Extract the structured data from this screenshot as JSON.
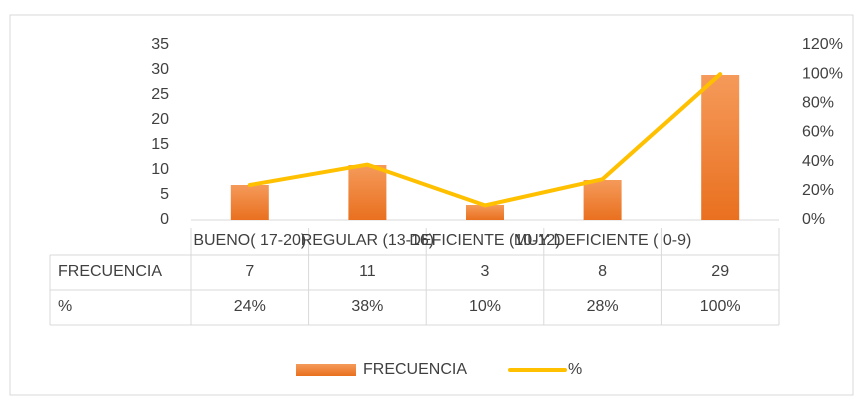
{
  "chart_data": {
    "type": "bar",
    "categories": [
      "BUENO( 17-20)",
      "REGULAR  (13-16)",
      "DEFICIENTE (10-12)",
      "MUY DEFICIENTE ( 0-9)",
      null
    ],
    "series": [
      {
        "name": "FRECUENCIA",
        "color": "#ed7d31",
        "values": [
          7,
          11,
          3,
          8,
          29
        ]
      },
      {
        "name": "%",
        "color": "#ffc000",
        "type": "line",
        "axis": "y2",
        "values": [
          24,
          38,
          10,
          28,
          100
        ],
        "value_labels": [
          "24%",
          "38%",
          "10%",
          "28%",
          "100%"
        ]
      }
    ],
    "ylim": [
      0,
      35
    ],
    "yticks": [
      0,
      5,
      10,
      15,
      20,
      25,
      30,
      35
    ],
    "y2lim": [
      0,
      120
    ],
    "y2ticks": [
      {
        "value": 0,
        "label": "0%"
      },
      {
        "value": 20,
        "label": "20%"
      },
      {
        "value": 40,
        "label": "40%"
      },
      {
        "value": 60,
        "label": "60%"
      },
      {
        "value": 80,
        "label": "80%"
      },
      {
        "value": 100,
        "label": "100%"
      },
      {
        "value": 120,
        "label": "120%"
      }
    ],
    "grid": false,
    "legend": "bottom",
    "data_table": true
  }
}
